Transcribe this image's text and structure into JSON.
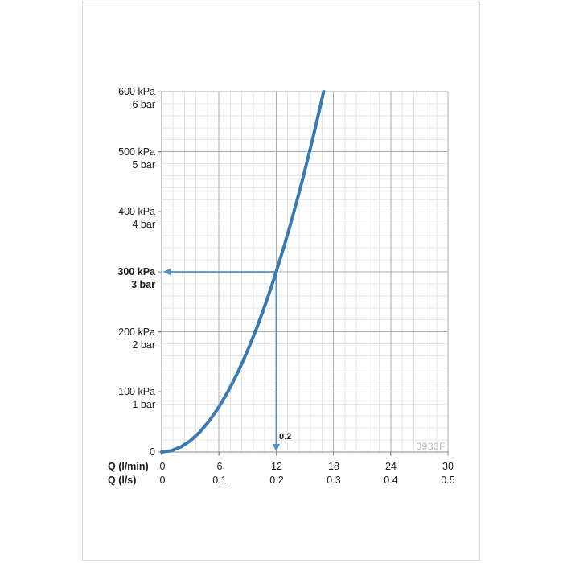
{
  "chart_data": {
    "type": "line",
    "title": "",
    "y_axis": {
      "range_kpa": [
        0,
        600
      ],
      "major_step_kpa": 100,
      "minor_divisions": 5,
      "origin_label": "0",
      "ticks": [
        {
          "kpa": "600 kPa",
          "bar": "6 bar",
          "bold": false
        },
        {
          "kpa": "500 kPa",
          "bar": "5 bar",
          "bold": false
        },
        {
          "kpa": "400 kPa",
          "bar": "4 bar",
          "bold": false
        },
        {
          "kpa": "300 kPa",
          "bar": "3 bar",
          "bold": true
        },
        {
          "kpa": "200 kPa",
          "bar": "2 bar",
          "bold": false
        },
        {
          "kpa": "100 kPa",
          "bar": "1 bar",
          "bold": false
        }
      ]
    },
    "x_axis": {
      "range_lmin": [
        0,
        30
      ],
      "major_step_lmin": 6,
      "minor_divisions": 5,
      "rows": [
        {
          "label": "Q (l/min)",
          "ticks": [
            "0",
            "6",
            "12",
            "18",
            "24",
            "30"
          ]
        },
        {
          "label": "Q (l/s)",
          "ticks": [
            "0",
            "0.1",
            "0.2",
            "0.3",
            "0.4",
            "0.5"
          ]
        }
      ]
    },
    "series": [
      {
        "name": "pressure-loss-curve",
        "color": "#3a7ab3",
        "stroke_width": 4,
        "points_lmin_kpa": [
          [
            0,
            0
          ],
          [
            1,
            2.1
          ],
          [
            2,
            8.3
          ],
          [
            3,
            18.8
          ],
          [
            4,
            33.3
          ],
          [
            5,
            52.1
          ],
          [
            6,
            75
          ],
          [
            7,
            102.1
          ],
          [
            8,
            133.3
          ],
          [
            9,
            168.8
          ],
          [
            10,
            208.3
          ],
          [
            10.5,
            229.7
          ],
          [
            11,
            252.1
          ],
          [
            11.5,
            275.5
          ],
          [
            12,
            300
          ],
          [
            12.5,
            325.5
          ],
          [
            13,
            352.1
          ],
          [
            13.5,
            379.7
          ],
          [
            14,
            408.3
          ],
          [
            14.5,
            438
          ],
          [
            15,
            468.8
          ],
          [
            15.5,
            500.5
          ],
          [
            16,
            533.3
          ],
          [
            16.5,
            567.2
          ],
          [
            16.97,
            600
          ]
        ]
      }
    ],
    "annotation": {
      "q_lmin": 12,
      "p_kpa": 300,
      "flow_label": "0.2",
      "arrow_color": "#4e8fc0"
    },
    "watermark": "3933F",
    "grid": {
      "major_color": "#acacac",
      "minor_color": "#e6e6e6",
      "axis_color": "#8a8a8a"
    }
  }
}
